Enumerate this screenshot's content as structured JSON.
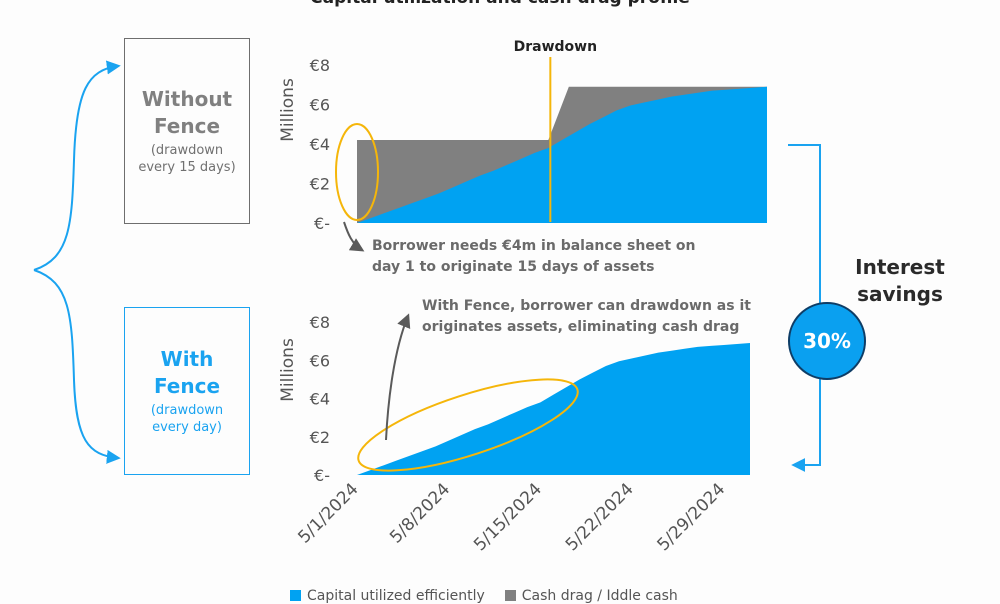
{
  "title": "Capital utilization and cash drag profile",
  "colors": {
    "blue": "#00A2F2",
    "gray": "#808080",
    "orange": "#F5B60A",
    "dark": "#5a5a5a"
  },
  "boxes": {
    "without": {
      "title_line1": "Without",
      "title_line2": "Fence",
      "sub_line1": "(drawdown",
      "sub_line2": "every 15 days)"
    },
    "with": {
      "title_line1": "With",
      "title_line2": "Fence",
      "sub_line1": "(drawdown",
      "sub_line2": "every day)"
    }
  },
  "savings": {
    "label_line1": "Interest",
    "label_line2": "savings",
    "value": "30%"
  },
  "legend": {
    "blue_label": "Capital utilized efficiently",
    "gray_label": "Cash drag / Iddle cash"
  },
  "chart_data": [
    {
      "type": "area",
      "name": "Without Fence",
      "ylabel": "Millions",
      "ylim": [
        0,
        8
      ],
      "yticks": [
        0,
        2,
        4,
        6,
        8
      ],
      "ytick_labels": [
        "€-",
        "€2",
        "€4",
        "€6",
        "€8"
      ],
      "x_days": [
        0,
        1,
        2,
        3,
        4,
        5,
        6,
        7,
        8,
        9,
        10,
        11,
        12,
        13,
        14,
        15,
        16,
        17,
        18,
        19,
        20,
        21,
        22,
        23,
        24,
        25,
        26,
        27,
        28,
        29,
        30
      ],
      "series": [
        {
          "name": "Capital utilized efficiently",
          "values": [
            0,
            0.25,
            0.5,
            0.75,
            1.0,
            1.25,
            1.5,
            1.8,
            2.1,
            2.4,
            2.65,
            2.95,
            3.25,
            3.55,
            3.8,
            4.2,
            4.6,
            5.0,
            5.35,
            5.7,
            5.95,
            6.1,
            6.25,
            6.4,
            6.5,
            6.6,
            6.7,
            6.75,
            6.8,
            6.85,
            6.9
          ]
        },
        {
          "name": "Cash drag / Iddle cash",
          "values": [
            4.2,
            4.2,
            4.2,
            4.2,
            4.2,
            4.2,
            4.2,
            4.2,
            4.2,
            4.2,
            4.2,
            4.2,
            4.2,
            4.2,
            4.2,
            6.9,
            6.9,
            6.9,
            6.9,
            6.9,
            6.9,
            6.9,
            6.9,
            6.9,
            6.9,
            6.9,
            6.9,
            6.9,
            6.9,
            6.9,
            6.9
          ]
        }
      ],
      "annotations": [
        {
          "text": "Drawdown",
          "x_day": 14
        },
        {
          "text_line1": "Borrower needs €4m in balance sheet on",
          "text_line2": "day 1 to originate 15 days of assets"
        }
      ]
    },
    {
      "type": "area",
      "name": "With Fence",
      "ylabel": "Millions",
      "ylim": [
        0,
        8
      ],
      "yticks": [
        0,
        2,
        4,
        6,
        8
      ],
      "ytick_labels": [
        "€-",
        "€2",
        "€4",
        "€6",
        "€8"
      ],
      "xtick_days": [
        0,
        7,
        14,
        21,
        28
      ],
      "xtick_labels": [
        "5/1/2024",
        "5/8/2024",
        "5/15/2024",
        "5/22/2024",
        "5/29/2024"
      ],
      "x_days": [
        0,
        1,
        2,
        3,
        4,
        5,
        6,
        7,
        8,
        9,
        10,
        11,
        12,
        13,
        14,
        15,
        16,
        17,
        18,
        19,
        20,
        21,
        22,
        23,
        24,
        25,
        26,
        27,
        28,
        29,
        30
      ],
      "series": [
        {
          "name": "Capital utilized efficiently",
          "values": [
            0,
            0.25,
            0.5,
            0.75,
            1.0,
            1.25,
            1.5,
            1.8,
            2.1,
            2.4,
            2.65,
            2.95,
            3.25,
            3.55,
            3.8,
            4.2,
            4.6,
            5.0,
            5.35,
            5.7,
            5.95,
            6.1,
            6.25,
            6.4,
            6.5,
            6.6,
            6.7,
            6.75,
            6.8,
            6.85,
            6.9
          ]
        }
      ],
      "annotations": [
        {
          "text_line1": "With Fence, borrower can drawdown as it",
          "text_line2": "originates assets, eliminating cash drag"
        }
      ]
    }
  ]
}
